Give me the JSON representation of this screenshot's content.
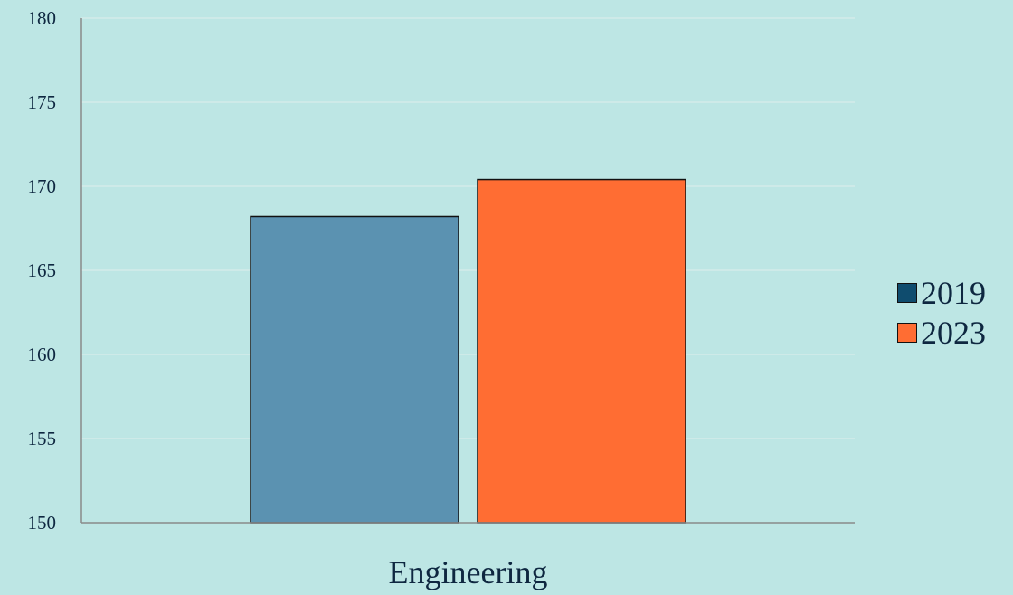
{
  "chart_data": {
    "type": "bar",
    "title": "",
    "xlabel": "",
    "ylabel": "",
    "categories": [
      "Engineering"
    ],
    "series": [
      {
        "name": "2019",
        "values": [
          168.2
        ],
        "color": "#5b92b1",
        "legend_color": "#0f4c6e"
      },
      {
        "name": "2023",
        "values": [
          170.4
        ],
        "color": "#ff6d33",
        "legend_color": "#ff6d33"
      }
    ],
    "ylim": [
      150,
      180
    ],
    "yticks": [
      "150",
      "155",
      "160",
      "165",
      "170",
      "175",
      "180"
    ],
    "grid": true,
    "legend_position": "right"
  }
}
